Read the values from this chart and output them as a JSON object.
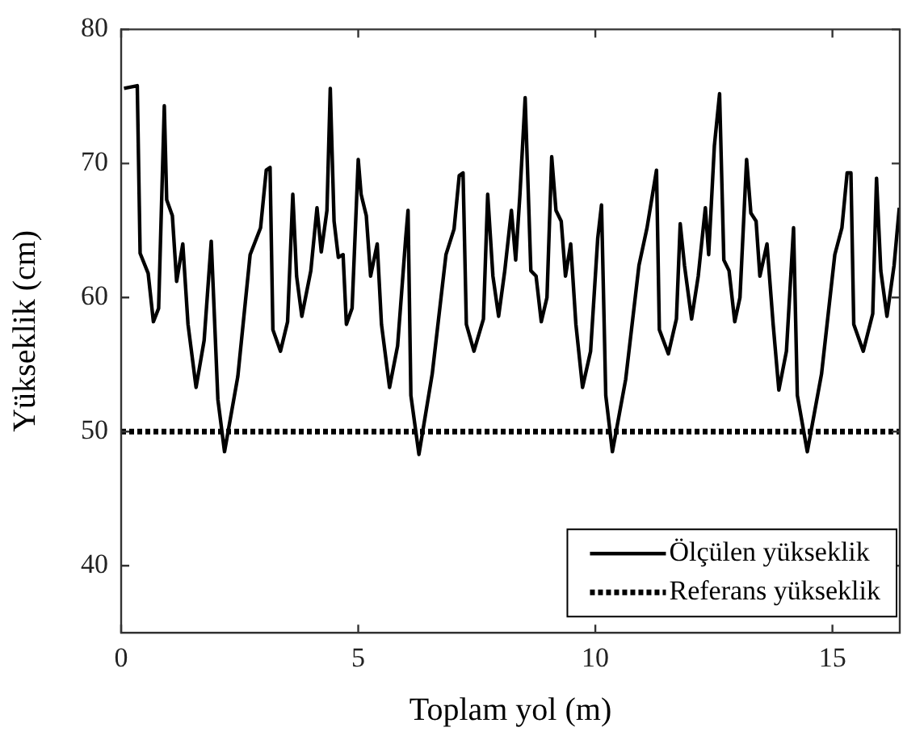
{
  "chart_data": {
    "type": "line",
    "xlabel": "Toplam yol (m)",
    "ylabel": "Yükseklik (cm)",
    "xlim": [
      0,
      16.42
    ],
    "ylim": [
      35,
      80
    ],
    "xticks": [
      0,
      5,
      10,
      15
    ],
    "yticks": [
      40,
      50,
      60,
      70,
      80
    ],
    "legend": "bottom right",
    "series": [
      {
        "name": "Ölçülen yükseklik",
        "color": "#000000",
        "line_style": "solid",
        "x": [
          0.06,
          0.34,
          0.4,
          0.57,
          0.68,
          0.79,
          0.91,
          0.96,
          1.08,
          1.17,
          1.3,
          1.41,
          1.58,
          1.75,
          1.9,
          2.04,
          2.18,
          2.46,
          2.72,
          2.94,
          3.06,
          3.14,
          3.2,
          3.36,
          3.51,
          3.62,
          3.7,
          3.81,
          4.0,
          4.13,
          4.22,
          4.34,
          4.41,
          4.49,
          4.58,
          4.68,
          4.75,
          4.87,
          5.0,
          5.06,
          5.17,
          5.26,
          5.4,
          5.49,
          5.66,
          5.83,
          6.0,
          6.05,
          6.11,
          6.28,
          6.56,
          6.85,
          7.02,
          7.13,
          7.21,
          7.28,
          7.44,
          7.64,
          7.73,
          7.84,
          7.96,
          8.09,
          8.23,
          8.32,
          8.41,
          8.52,
          8.64,
          8.75,
          8.86,
          8.98,
          9.08,
          9.17,
          9.28,
          9.37,
          9.48,
          9.59,
          9.73,
          9.9,
          10.05,
          10.13,
          10.22,
          10.36,
          10.64,
          10.92,
          11.09,
          11.29,
          11.35,
          11.54,
          11.71,
          11.79,
          11.88,
          12.03,
          12.17,
          12.32,
          12.39,
          12.51,
          12.62,
          12.71,
          12.82,
          12.94,
          13.05,
          13.19,
          13.28,
          13.39,
          13.47,
          13.62,
          13.75,
          13.87,
          14.03,
          14.18,
          14.26,
          14.47,
          14.77,
          15.05,
          15.2,
          15.31,
          15.39,
          15.45,
          15.65,
          15.85,
          15.93,
          16.02,
          16.15,
          16.3,
          16.41
        ],
        "values": [
          75.6,
          75.8,
          63.3,
          61.8,
          58.2,
          59.2,
          74.3,
          67.3,
          66.1,
          61.2,
          64.0,
          58.0,
          53.3,
          56.8,
          64.2,
          52.4,
          48.5,
          54.1,
          63.2,
          65.2,
          69.5,
          69.7,
          57.6,
          56.0,
          58.2,
          67.7,
          61.6,
          58.6,
          62.0,
          66.7,
          63.4,
          66.5,
          75.6,
          65.7,
          63.0,
          63.2,
          58.0,
          59.2,
          70.3,
          67.7,
          66.1,
          61.6,
          64.0,
          58.0,
          53.3,
          56.4,
          64.4,
          66.5,
          52.7,
          48.3,
          54.3,
          63.2,
          65.1,
          69.1,
          69.3,
          58.0,
          56.0,
          58.4,
          67.7,
          61.6,
          58.6,
          62.0,
          66.5,
          62.8,
          67.7,
          74.9,
          62.0,
          61.6,
          58.2,
          60.0,
          70.5,
          66.5,
          65.7,
          61.6,
          64.0,
          58.0,
          53.3,
          56.0,
          64.4,
          66.9,
          52.7,
          48.5,
          53.9,
          62.4,
          65.2,
          69.5,
          57.6,
          55.8,
          58.4,
          65.5,
          62.4,
          58.4,
          61.6,
          66.7,
          63.2,
          71.3,
          75.2,
          62.8,
          62.0,
          58.2,
          60.0,
          70.3,
          66.3,
          65.7,
          61.6,
          64.0,
          58.0,
          53.1,
          56.0,
          65.2,
          52.7,
          48.5,
          54.3,
          63.2,
          65.2,
          69.3,
          69.3,
          58.0,
          56.0,
          58.8,
          68.9,
          62.0,
          58.6,
          62.4,
          66.7
        ]
      },
      {
        "name": "Referans yükseklik",
        "color": "#000000",
        "line_style": "dotted",
        "x": [
          0,
          16.42
        ],
        "values": [
          50,
          50
        ]
      }
    ]
  }
}
